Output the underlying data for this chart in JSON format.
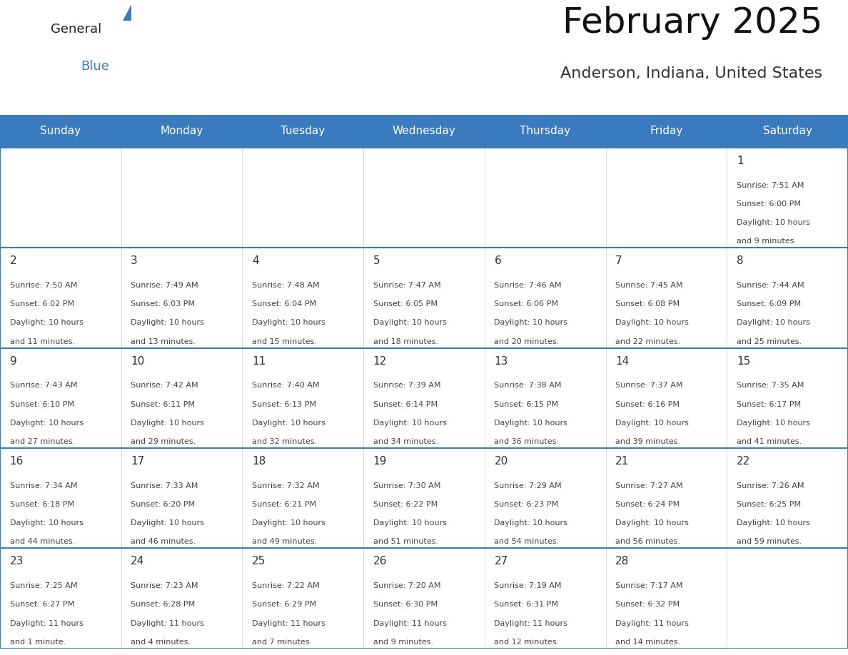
{
  "title": "February 2025",
  "subtitle": "Anderson, Indiana, United States",
  "header_color": "#3a7abf",
  "header_text_color": "#ffffff",
  "day_names": [
    "Sunday",
    "Monday",
    "Tuesday",
    "Wednesday",
    "Thursday",
    "Friday",
    "Saturday"
  ],
  "background_color": "#ffffff",
  "grid_color": "#3a7abf",
  "cell_line_color": "#aaaaaa",
  "date_color": "#333333",
  "text_color": "#444444",
  "logo_general_color": "#222222",
  "logo_blue_color": "#3a7abf",
  "logo_triangle_color": "#3a7abf",
  "title_fontsize": 36,
  "subtitle_fontsize": 16,
  "header_fontsize": 11,
  "day_num_fontsize": 11,
  "cell_text_fontsize": 8,
  "days": [
    {
      "day": 1,
      "col": 6,
      "row": 0,
      "sunrise": "7:51 AM",
      "sunset": "6:00 PM",
      "daylight": "10 hours and 9 minutes."
    },
    {
      "day": 2,
      "col": 0,
      "row": 1,
      "sunrise": "7:50 AM",
      "sunset": "6:02 PM",
      "daylight": "10 hours and 11 minutes."
    },
    {
      "day": 3,
      "col": 1,
      "row": 1,
      "sunrise": "7:49 AM",
      "sunset": "6:03 PM",
      "daylight": "10 hours and 13 minutes."
    },
    {
      "day": 4,
      "col": 2,
      "row": 1,
      "sunrise": "7:48 AM",
      "sunset": "6:04 PM",
      "daylight": "10 hours and 15 minutes."
    },
    {
      "day": 5,
      "col": 3,
      "row": 1,
      "sunrise": "7:47 AM",
      "sunset": "6:05 PM",
      "daylight": "10 hours and 18 minutes."
    },
    {
      "day": 6,
      "col": 4,
      "row": 1,
      "sunrise": "7:46 AM",
      "sunset": "6:06 PM",
      "daylight": "10 hours and 20 minutes."
    },
    {
      "day": 7,
      "col": 5,
      "row": 1,
      "sunrise": "7:45 AM",
      "sunset": "6:08 PM",
      "daylight": "10 hours and 22 minutes."
    },
    {
      "day": 8,
      "col": 6,
      "row": 1,
      "sunrise": "7:44 AM",
      "sunset": "6:09 PM",
      "daylight": "10 hours and 25 minutes."
    },
    {
      "day": 9,
      "col": 0,
      "row": 2,
      "sunrise": "7:43 AM",
      "sunset": "6:10 PM",
      "daylight": "10 hours and 27 minutes."
    },
    {
      "day": 10,
      "col": 1,
      "row": 2,
      "sunrise": "7:42 AM",
      "sunset": "6:11 PM",
      "daylight": "10 hours and 29 minutes."
    },
    {
      "day": 11,
      "col": 2,
      "row": 2,
      "sunrise": "7:40 AM",
      "sunset": "6:13 PM",
      "daylight": "10 hours and 32 minutes."
    },
    {
      "day": 12,
      "col": 3,
      "row": 2,
      "sunrise": "7:39 AM",
      "sunset": "6:14 PM",
      "daylight": "10 hours and 34 minutes."
    },
    {
      "day": 13,
      "col": 4,
      "row": 2,
      "sunrise": "7:38 AM",
      "sunset": "6:15 PM",
      "daylight": "10 hours and 36 minutes."
    },
    {
      "day": 14,
      "col": 5,
      "row": 2,
      "sunrise": "7:37 AM",
      "sunset": "6:16 PM",
      "daylight": "10 hours and 39 minutes."
    },
    {
      "day": 15,
      "col": 6,
      "row": 2,
      "sunrise": "7:35 AM",
      "sunset": "6:17 PM",
      "daylight": "10 hours and 41 minutes."
    },
    {
      "day": 16,
      "col": 0,
      "row": 3,
      "sunrise": "7:34 AM",
      "sunset": "6:18 PM",
      "daylight": "10 hours and 44 minutes."
    },
    {
      "day": 17,
      "col": 1,
      "row": 3,
      "sunrise": "7:33 AM",
      "sunset": "6:20 PM",
      "daylight": "10 hours and 46 minutes."
    },
    {
      "day": 18,
      "col": 2,
      "row": 3,
      "sunrise": "7:32 AM",
      "sunset": "6:21 PM",
      "daylight": "10 hours and 49 minutes."
    },
    {
      "day": 19,
      "col": 3,
      "row": 3,
      "sunrise": "7:30 AM",
      "sunset": "6:22 PM",
      "daylight": "10 hours and 51 minutes."
    },
    {
      "day": 20,
      "col": 4,
      "row": 3,
      "sunrise": "7:29 AM",
      "sunset": "6:23 PM",
      "daylight": "10 hours and 54 minutes."
    },
    {
      "day": 21,
      "col": 5,
      "row": 3,
      "sunrise": "7:27 AM",
      "sunset": "6:24 PM",
      "daylight": "10 hours and 56 minutes."
    },
    {
      "day": 22,
      "col": 6,
      "row": 3,
      "sunrise": "7:26 AM",
      "sunset": "6:25 PM",
      "daylight": "10 hours and 59 minutes."
    },
    {
      "day": 23,
      "col": 0,
      "row": 4,
      "sunrise": "7:25 AM",
      "sunset": "6:27 PM",
      "daylight": "11 hours and 1 minute."
    },
    {
      "day": 24,
      "col": 1,
      "row": 4,
      "sunrise": "7:23 AM",
      "sunset": "6:28 PM",
      "daylight": "11 hours and 4 minutes."
    },
    {
      "day": 25,
      "col": 2,
      "row": 4,
      "sunrise": "7:22 AM",
      "sunset": "6:29 PM",
      "daylight": "11 hours and 7 minutes."
    },
    {
      "day": 26,
      "col": 3,
      "row": 4,
      "sunrise": "7:20 AM",
      "sunset": "6:30 PM",
      "daylight": "11 hours and 9 minutes."
    },
    {
      "day": 27,
      "col": 4,
      "row": 4,
      "sunrise": "7:19 AM",
      "sunset": "6:31 PM",
      "daylight": "11 hours and 12 minutes."
    },
    {
      "day": 28,
      "col": 5,
      "row": 4,
      "sunrise": "7:17 AM",
      "sunset": "6:32 PM",
      "daylight": "11 hours and 14 minutes."
    }
  ]
}
